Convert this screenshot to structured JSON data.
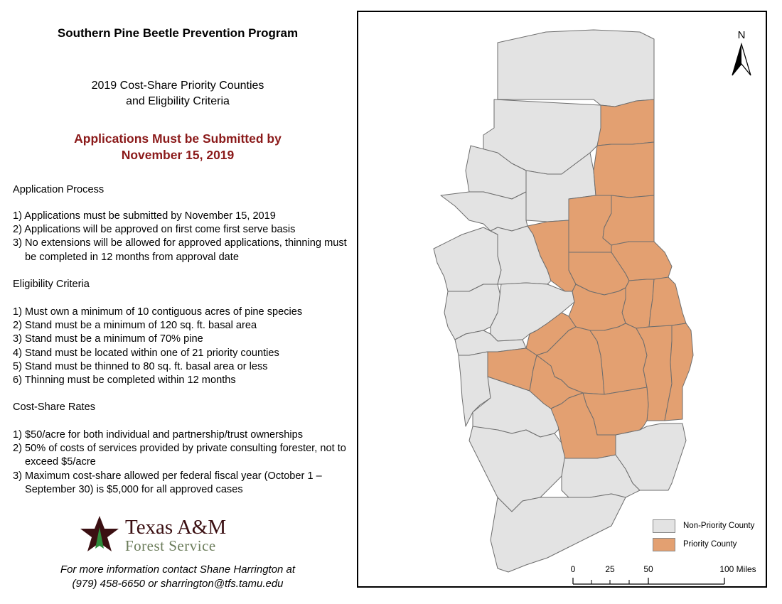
{
  "header": {
    "title": "Southern Pine Beetle Prevention Program",
    "subtitle_line1": "2019 Cost-Share Priority Counties",
    "subtitle_line2": "and Eligbility Criteria",
    "deadline_line1": "Applications Must be Submitted by",
    "deadline_line2": "November 15, 2019"
  },
  "application_process": {
    "heading": "Application Process",
    "items": [
      "1) Applications must be submitted by November 15, 2019",
      "2) Applications will be approved on first come first serve basis",
      "3) No extensions will be allowed for approved applications, thinning must be completed in 12 months from approval date"
    ]
  },
  "eligibility": {
    "heading": "Eligibility Criteria",
    "items": [
      "1) Must own a minimum of 10 contiguous acres of pine species",
      "2) Stand must be a minimum of 120 sq. ft. basal area",
      "3) Stand must be a minimum of 70% pine",
      "4) Stand must be located within one of 21 priority counties",
      "5) Stand must be thinned to 80 sq. ft. basal area or less",
      "6) Thinning must be completed within 12 months"
    ]
  },
  "cost_share": {
    "heading": "Cost-Share Rates",
    "items": [
      "1) $50/acre for both individual and partnership/trust ownerships",
      "2) 50% of costs of services provided by private consulting forester, not to exceed $5/acre",
      "3) Maximum cost-share allowed per federal fiscal year (October 1 –September 30) is $5,000 for all approved cases"
    ]
  },
  "logo": {
    "line1": "Texas A&M",
    "line2": "Forest Service"
  },
  "contact": {
    "line1": "For more information contact Shane Harrington at",
    "line2": "(979) 458-6650 or sharrington@tfs.tamu.edu"
  },
  "map": {
    "north_label": "N",
    "legend": [
      {
        "label": "Non-Priority County",
        "color": "#e3e3e3"
      },
      {
        "label": "Priority County",
        "color": "#e3a071"
      }
    ],
    "scale_labels": [
      "0",
      "25",
      "50",
      "100 Miles"
    ],
    "colors": {
      "non_priority": "#e3e3e3",
      "priority": "#e3a071",
      "outline": "#6e6e6e"
    }
  }
}
